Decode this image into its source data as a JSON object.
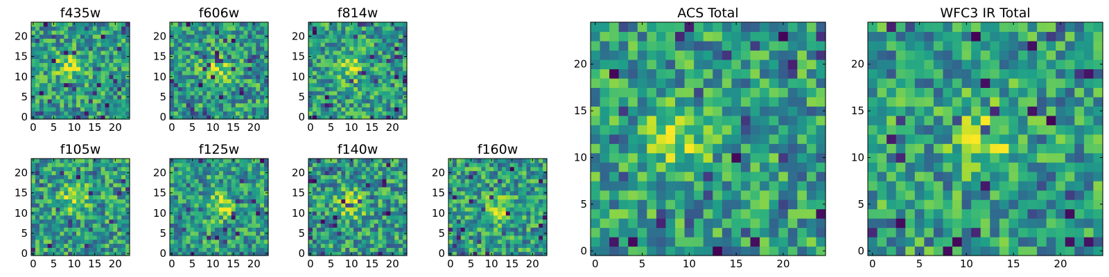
{
  "chart_data": [
    {
      "type": "heatmap",
      "title": "f435w",
      "grid_size": 24,
      "colormap": "viridis",
      "xticks": [
        "0",
        "5",
        "10",
        "15",
        "20"
      ],
      "yticks": [
        "0",
        "5",
        "10",
        "15",
        "20"
      ],
      "blob": [
        9,
        13
      ],
      "seed": 11
    },
    {
      "type": "heatmap",
      "title": "f606w",
      "grid_size": 24,
      "colormap": "viridis",
      "xticks": [
        "0",
        "5",
        "10",
        "15",
        "20"
      ],
      "yticks": [
        "0",
        "5",
        "10",
        "15",
        "20"
      ],
      "blob": [
        11,
        12
      ],
      "seed": 23
    },
    {
      "type": "heatmap",
      "title": "f814w",
      "grid_size": 24,
      "colormap": "viridis",
      "xticks": [
        "0",
        "5",
        "10",
        "15",
        "20"
      ],
      "yticks": [
        "0",
        "5",
        "10",
        "15",
        "20"
      ],
      "blob": [
        10,
        12
      ],
      "seed": 37
    },
    {
      "type": "heatmap",
      "title": "f105w",
      "grid_size": 24,
      "colormap": "viridis",
      "xticks": [
        "0",
        "5",
        "10",
        "15",
        "20"
      ],
      "yticks": [
        "0",
        "5",
        "10",
        "15",
        "20"
      ],
      "blob": [
        10,
        14
      ],
      "seed": 41
    },
    {
      "type": "heatmap",
      "title": "f125w",
      "grid_size": 24,
      "colormap": "viridis",
      "xticks": [
        "0",
        "5",
        "10",
        "15",
        "20"
      ],
      "yticks": [
        "0",
        "5",
        "10",
        "15",
        "20"
      ],
      "blob": [
        12,
        12
      ],
      "seed": 53
    },
    {
      "type": "heatmap",
      "title": "f140w",
      "grid_size": 24,
      "colormap": "viridis",
      "xticks": [
        "0",
        "5",
        "10",
        "15",
        "20"
      ],
      "yticks": [
        "0",
        "5",
        "10",
        "15",
        "20"
      ],
      "blob": [
        10,
        12
      ],
      "seed": 67
    },
    {
      "type": "heatmap",
      "title": "f160w",
      "grid_size": 24,
      "colormap": "viridis",
      "xticks": [
        "0",
        "5",
        "10",
        "15",
        "20"
      ],
      "yticks": [
        "0",
        "5",
        "10",
        "15",
        "20"
      ],
      "blob": [
        12,
        11
      ],
      "seed": 79
    },
    {
      "type": "heatmap",
      "title": "ACS Total",
      "grid_size": 25,
      "colormap": "viridis",
      "xticks": [
        "0",
        "5",
        "10",
        "15",
        "20"
      ],
      "yticks": [
        "0",
        "5",
        "10",
        "15",
        "20"
      ],
      "blob": [
        9,
        12
      ],
      "seed": 97
    },
    {
      "type": "heatmap",
      "title": "WFC3 IR Total",
      "grid_size": 25,
      "colormap": "viridis",
      "xticks": [
        "0",
        "5",
        "10",
        "15",
        "20"
      ],
      "yticks": [
        "0",
        "5",
        "10",
        "15",
        "20"
      ],
      "blob": [
        12,
        12
      ],
      "seed": 113
    }
  ]
}
